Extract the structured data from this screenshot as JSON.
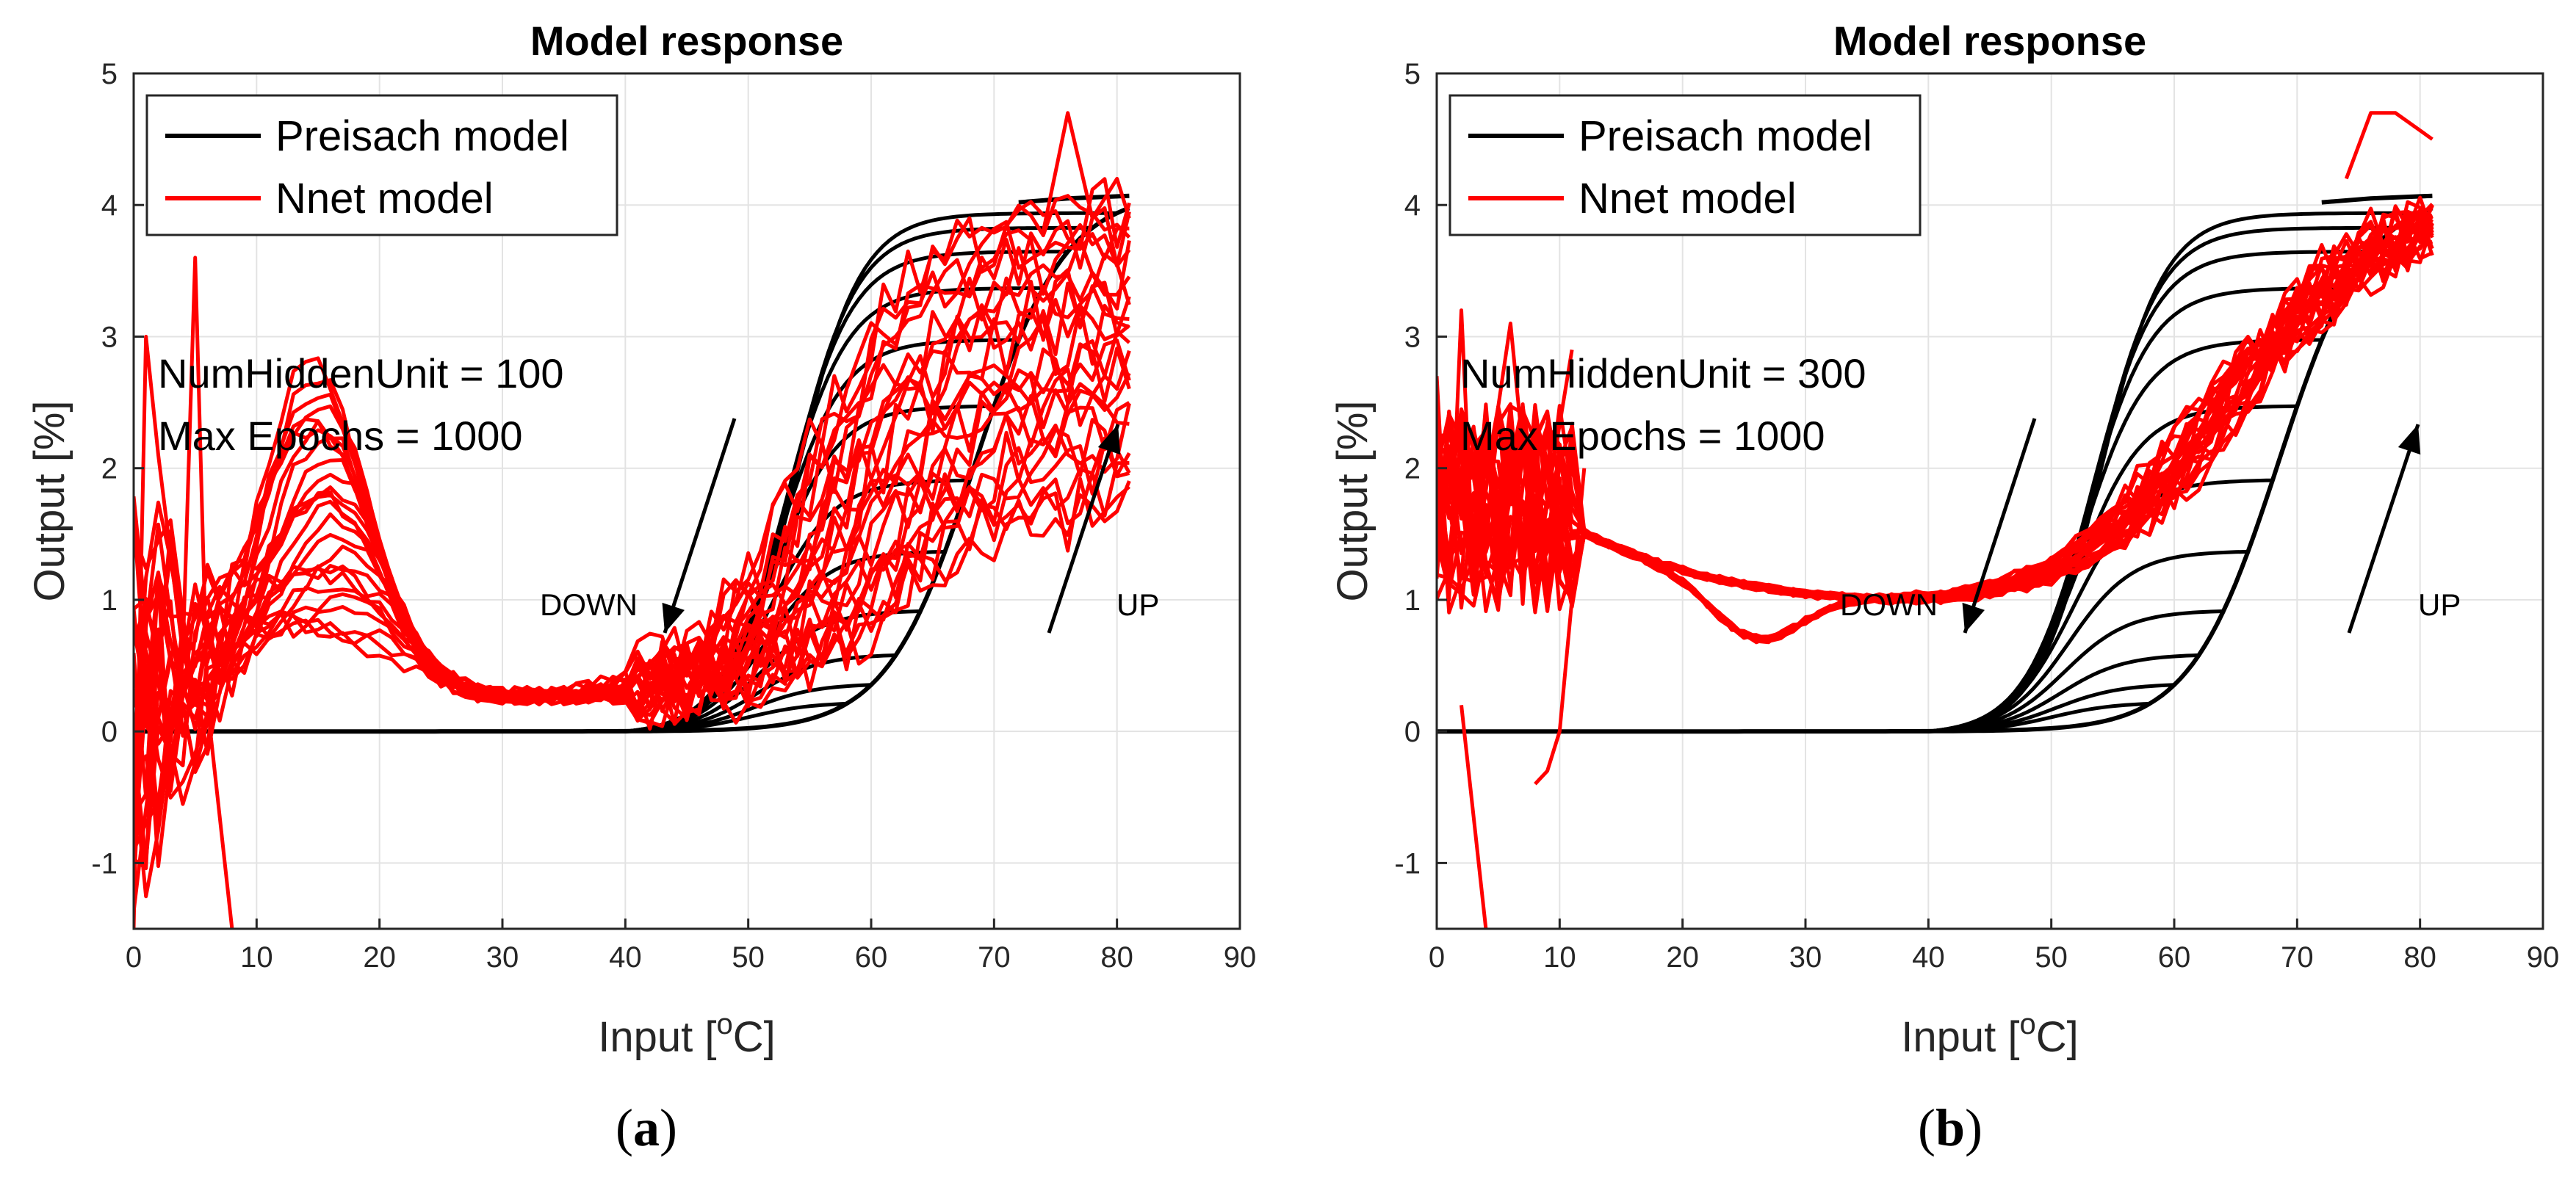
{
  "chart_data": [
    {
      "type": "line",
      "panel_label": "a",
      "title": "Model response",
      "xlabel": "Input [",
      "xlabel_sup": "o",
      "xlabel_tail": "C]",
      "ylabel": "Output [%]",
      "xlim": [
        0,
        90
      ],
      "ylim": [
        -1.5,
        5
      ],
      "xticks": [
        "0",
        "10",
        "20",
        "30",
        "40",
        "50",
        "60",
        "70",
        "80",
        "90"
      ],
      "yticks": [
        "-1",
        "0",
        "1",
        "2",
        "3",
        "4",
        "5"
      ],
      "grid": true,
      "legend": {
        "position": "top-left",
        "entries": [
          {
            "label": "Preisach model",
            "color": "#000000"
          },
          {
            "label": "Nnet model",
            "color": "#ff0000"
          }
        ]
      },
      "annotations": {
        "hidden_units": "NumHiddenUnit = 100",
        "epochs": "Max Epochs = 1000",
        "down": "DOWN",
        "up": "UP"
      },
      "series": [
        {
          "name": "Preisach model",
          "description": "hysteresis loop family: up branch threshold 55-75 °C, down branches return to 0 near 40 °C, reversal points x ≈ 58-80"
        },
        {
          "name": "Nnet model",
          "description": "noisy red fits, 100 hidden units"
        }
      ]
    },
    {
      "type": "line",
      "panel_label": "b",
      "title": "Model response",
      "xlabel": "Input [",
      "xlabel_sup": "o",
      "xlabel_tail": "C]",
      "ylabel": "Output [%]",
      "xlim": [
        0,
        90
      ],
      "ylim": [
        -1.5,
        5
      ],
      "xticks": [
        "0",
        "10",
        "20",
        "30",
        "40",
        "50",
        "60",
        "70",
        "80",
        "90"
      ],
      "yticks": [
        "-1",
        "0",
        "1",
        "2",
        "3",
        "4",
        "5"
      ],
      "grid": true,
      "legend": {
        "position": "top-left",
        "entries": [
          {
            "label": "Preisach model",
            "color": "#000000"
          },
          {
            "label": "Nnet model",
            "color": "#ff0000"
          }
        ]
      },
      "annotations": {
        "hidden_units": "NumHiddenUnit = 300",
        "epochs": "Max Epochs = 1000",
        "down": "DOWN",
        "up": "UP"
      },
      "series": [
        {
          "name": "Preisach model",
          "description": "same hysteresis loop family as panel (a)"
        },
        {
          "name": "Nnet model",
          "description": "smoother red fits, 300 hidden units"
        }
      ]
    }
  ]
}
